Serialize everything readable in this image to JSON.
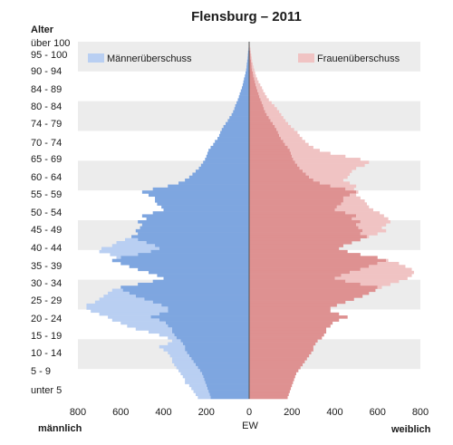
{
  "chart_data": {
    "type": "bar",
    "title": "Flensburg – 2011",
    "y_axis_title": "Alter",
    "xlabel": "EW",
    "left_label": "männlich",
    "right_label": "weiblich",
    "x_ticks": [
      "800",
      "600",
      "400",
      "200",
      "0",
      "200",
      "400",
      "600",
      "800"
    ],
    "xlim": [
      -800,
      800
    ],
    "age_labels": [
      "über 100",
      "95 - 100",
      "90 - 94",
      "84 - 89",
      "80 - 84",
      "74 - 79",
      "70 - 74",
      "65 - 69",
      "60 - 64",
      "55 - 59",
      "50 - 54",
      "45 - 49",
      "40 - 44",
      "35 - 39",
      "30 - 34",
      "25 - 29",
      "20 - 24",
      "15 - 19",
      "10 - 14",
      "5 - 9",
      "unter 5"
    ],
    "legend": [
      "Männerüberschuss",
      "Frauenüberschuss"
    ],
    "colors": {
      "male": "#7ea6e0",
      "male_surplus": "#b9cff2",
      "female": "#de9191",
      "female_surplus": "#f0c3c3",
      "band": "#ececec"
    },
    "series": [
      {
        "name": "männlich",
        "values": [
          0,
          2,
          3,
          5,
          6,
          7,
          9,
          11,
          12,
          14,
          17,
          20,
          24,
          27,
          30,
          34,
          39,
          44,
          48,
          53,
          59,
          65,
          69,
          75,
          82,
          92,
          100,
          110,
          120,
          128,
          135,
          140,
          148,
          160,
          168,
          180,
          190,
          195,
          200,
          206,
          215,
          225,
          235,
          250,
          265,
          280,
          300,
          330,
          380,
          450,
          500,
          470,
          440,
          440,
          430,
          410,
          400,
          450,
          500,
          480,
          520,
          500,
          510,
          530,
          520,
          550,
          580,
          620,
          640,
          690,
          700,
          650,
          620,
          640,
          600,
          560,
          520,
          470,
          430,
          400,
          450,
          520,
          600,
          640,
          660,
          680,
          700,
          720,
          760,
          760,
          740,
          700,
          660,
          640,
          600,
          570,
          530,
          470,
          420,
          380,
          360,
          380,
          420,
          400,
          380,
          370,
          360,
          360,
          350,
          340,
          330,
          320,
          310,
          300,
          300,
          280,
          270,
          260,
          250,
          240
        ]
      },
      {
        "name": "weiblich",
        "values": [
          0,
          3,
          6,
          8,
          10,
          12,
          14,
          17,
          20,
          24,
          28,
          32,
          38,
          44,
          52,
          60,
          66,
          74,
          82,
          92,
          105,
          118,
          130,
          140,
          150,
          160,
          170,
          182,
          195,
          210,
          226,
          236,
          248,
          262,
          278,
          300,
          330,
          380,
          450,
          520,
          560,
          540,
          500,
          480,
          470,
          460,
          440,
          470,
          500,
          490,
          510,
          500,
          520,
          540,
          550,
          560,
          580,
          610,
          630,
          650,
          660,
          640,
          620,
          640,
          600,
          560,
          520,
          480,
          440,
          420,
          460,
          520,
          600,
          650,
          700,
          730,
          760,
          770,
          760,
          740,
          700,
          660,
          620,
          590,
          560,
          530,
          490,
          450,
          410,
          380,
          380,
          420,
          460,
          420,
          390,
          380,
          360,
          360,
          350,
          340,
          320,
          310,
          300,
          300,
          290,
          280,
          270,
          260,
          250,
          240,
          230,
          220,
          215,
          210,
          205,
          200,
          195,
          190,
          185,
          180
        ]
      }
    ]
  }
}
